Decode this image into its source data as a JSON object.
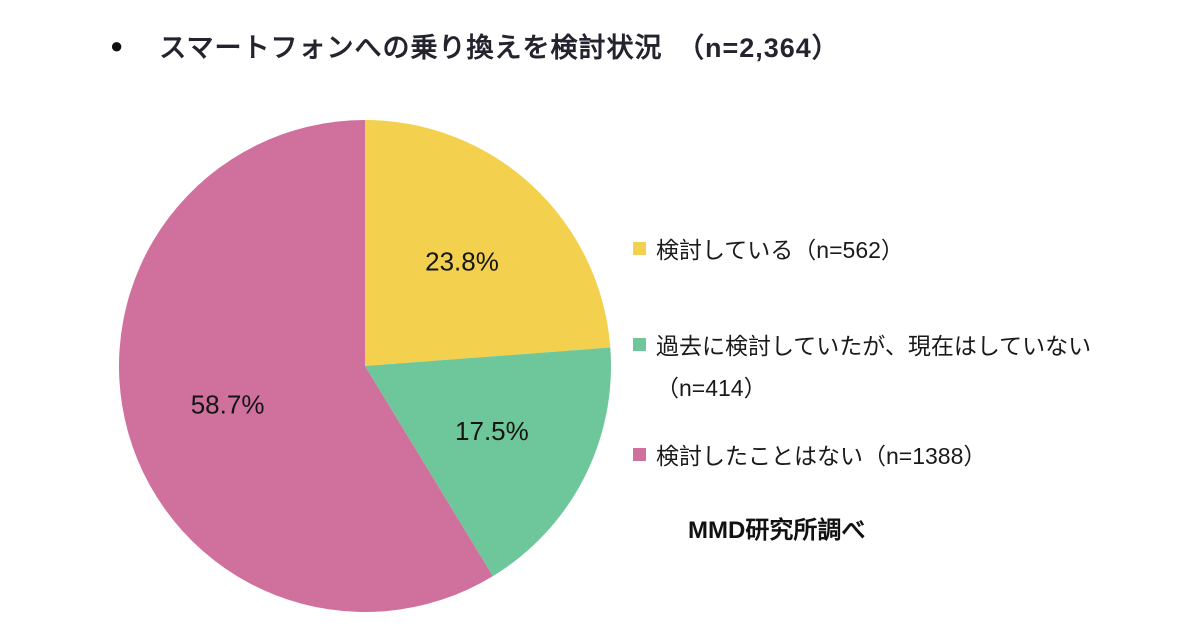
{
  "chart_data": {
    "type": "pie",
    "title": "スマートフォンへの乗り換えを検討状況　（n=2,364）",
    "bullet": "●",
    "start_angle": "top",
    "direction": "clockwise",
    "legend_position": "right",
    "source": "MMD研究所調べ",
    "total_n": "2,364",
    "slices": [
      {
        "legend_label": "検討している（n=562）",
        "pct_label": "23.8%",
        "value": 23.8,
        "n": 562,
        "color": "#f3d14e"
      },
      {
        "legend_label": "過去に検討していたが、現在はしていない（n=414）",
        "pct_label": "17.5%",
        "value": 17.5,
        "n": 414,
        "color": "#6ec79a"
      },
      {
        "legend_label": "検討したことはない（n=1388）",
        "pct_label": "58.7%",
        "value": 58.7,
        "n": 1388,
        "color": "#d0709c"
      }
    ]
  }
}
